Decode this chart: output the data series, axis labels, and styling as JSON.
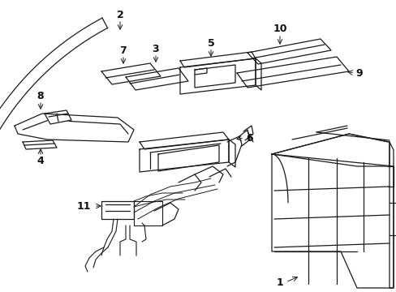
{
  "background": "#ffffff",
  "line_color": "#1a1a1a",
  "label_color": "#111111",
  "figsize": [
    4.89,
    3.6
  ],
  "dpi": 100
}
